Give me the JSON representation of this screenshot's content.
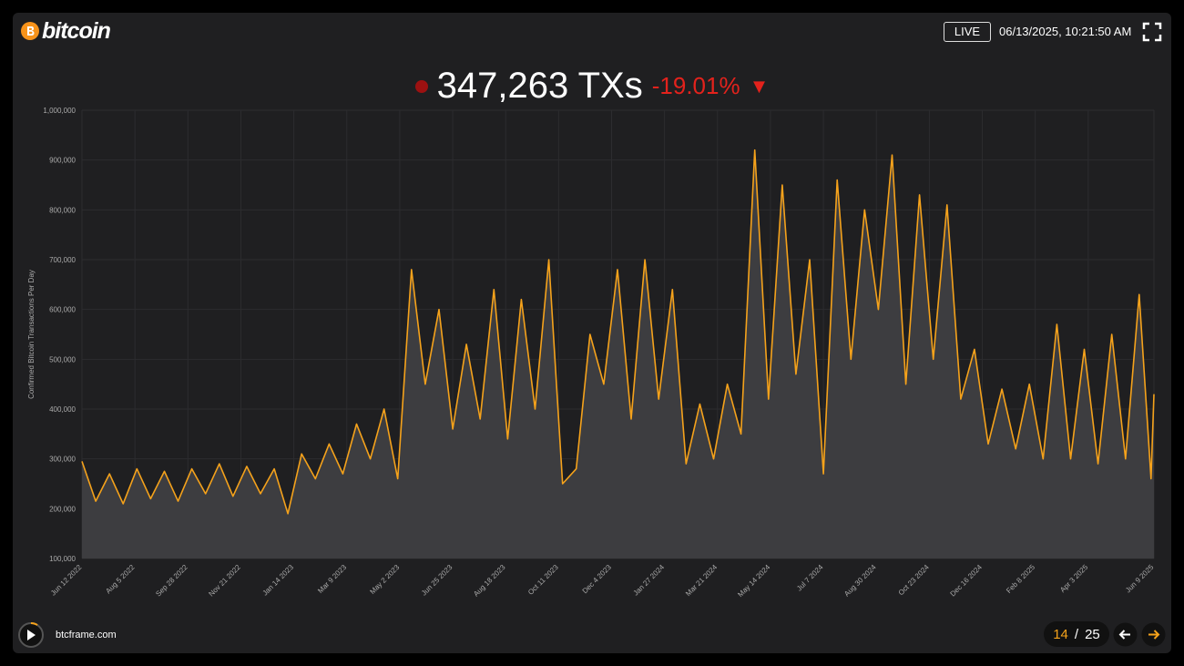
{
  "header": {
    "logo_text": "bitcoin",
    "live": "LIVE",
    "datetime": "06/13/2025, 10:21:50 AM"
  },
  "headline": {
    "value_text": "347,263 TXs",
    "change": "-19.01%",
    "arrow": "▼"
  },
  "footer": {
    "site": "btcframe.com",
    "page": "14",
    "separator": "/",
    "total": "25"
  },
  "chart_data": {
    "type": "area-line",
    "y_label": "Confirmed Bitcoin Transactions Per Day",
    "color": "#f5a21b",
    "area_color": "#3d3d40",
    "grid": true,
    "x": [
      "2022-06-12",
      "2022-06-26",
      "2022-07-10",
      "2022-07-24",
      "2022-08-07",
      "2022-08-21",
      "2022-09-04",
      "2022-09-18",
      "2022-10-02",
      "2022-10-16",
      "2022-10-30",
      "2022-11-13",
      "2022-11-27",
      "2022-12-11",
      "2022-12-25",
      "2023-01-08",
      "2023-01-22",
      "2023-02-05",
      "2023-02-19",
      "2023-03-05",
      "2023-03-19",
      "2023-04-02",
      "2023-04-16",
      "2023-04-30",
      "2023-05-14",
      "2023-05-28",
      "2023-06-11",
      "2023-06-25",
      "2023-07-09",
      "2023-07-23",
      "2023-08-06",
      "2023-08-20",
      "2023-09-03",
      "2023-09-17",
      "2023-10-01",
      "2023-10-15",
      "2023-10-29",
      "2023-11-12",
      "2023-11-26",
      "2023-12-10",
      "2023-12-24",
      "2024-01-07",
      "2024-01-21",
      "2024-02-04",
      "2024-02-18",
      "2024-03-03",
      "2024-03-17",
      "2024-03-31",
      "2024-04-14",
      "2024-04-28",
      "2024-05-12",
      "2024-05-26",
      "2024-06-09",
      "2024-06-23",
      "2024-07-07",
      "2024-07-21",
      "2024-08-04",
      "2024-08-18",
      "2024-09-01",
      "2024-09-15",
      "2024-09-29",
      "2024-10-13",
      "2024-10-27",
      "2024-11-10",
      "2024-11-24",
      "2024-12-08",
      "2024-12-22",
      "2025-01-05",
      "2025-01-19",
      "2025-02-02",
      "2025-02-16",
      "2025-03-02",
      "2025-03-16",
      "2025-03-30",
      "2025-04-13",
      "2025-04-27",
      "2025-05-11",
      "2025-05-25",
      "2025-06-06",
      "2025-06-09"
    ],
    "values": [
      295000,
      215000,
      270000,
      210000,
      280000,
      220000,
      275000,
      215000,
      280000,
      230000,
      290000,
      225000,
      285000,
      230000,
      280000,
      190000,
      310000,
      260000,
      330000,
      270000,
      370000,
      300000,
      400000,
      260000,
      680000,
      450000,
      600000,
      360000,
      530000,
      380000,
      640000,
      340000,
      620000,
      400000,
      700000,
      250000,
      280000,
      550000,
      450000,
      680000,
      380000,
      700000,
      420000,
      640000,
      290000,
      410000,
      300000,
      450000,
      350000,
      920000,
      420000,
      850000,
      470000,
      700000,
      270000,
      860000,
      500000,
      800000,
      600000,
      910000,
      450000,
      830000,
      500000,
      810000,
      420000,
      520000,
      330000,
      440000,
      320000,
      450000,
      300000,
      570000,
      300000,
      520000,
      290000,
      550000,
      300000,
      630000,
      260000,
      430000
    ],
    "xlim": [
      "2022-06-12",
      "2025-06-09"
    ],
    "xticks": [
      {
        "value": "2022-06-12",
        "label": "Jun 12 2022"
      },
      {
        "value": "2022-08-05",
        "label": "Aug 5 2022"
      },
      {
        "value": "2022-09-28",
        "label": "Sep 28 2022"
      },
      {
        "value": "2022-11-21",
        "label": "Nov 21 2022"
      },
      {
        "value": "2023-01-14",
        "label": "Jan 14 2023"
      },
      {
        "value": "2023-03-09",
        "label": "Mar 9 2023"
      },
      {
        "value": "2023-05-02",
        "label": "May 2 2023"
      },
      {
        "value": "2023-06-25",
        "label": "Jun 25 2023"
      },
      {
        "value": "2023-08-18",
        "label": "Aug 18 2023"
      },
      {
        "value": "2023-10-11",
        "label": "Oct 11 2023"
      },
      {
        "value": "2023-12-04",
        "label": "Dec 4 2023"
      },
      {
        "value": "2024-01-27",
        "label": "Jan 27 2024"
      },
      {
        "value": "2024-03-21",
        "label": "Mar 21 2024"
      },
      {
        "value": "2024-05-14",
        "label": "May 14 2024"
      },
      {
        "value": "2024-07-07",
        "label": "Jul 7 2024"
      },
      {
        "value": "2024-08-30",
        "label": "Aug 30 2024"
      },
      {
        "value": "2024-10-23",
        "label": "Oct 23 2024"
      },
      {
        "value": "2024-12-16",
        "label": "Dec 16 2024"
      },
      {
        "value": "2025-02-08",
        "label": "Feb 8 2025"
      },
      {
        "value": "2025-04-03",
        "label": "Apr 3 2025"
      },
      {
        "value": "2025-06-09",
        "label": "Jun 9 2025"
      }
    ],
    "ylim": [
      100000,
      1000000
    ],
    "yticks": [
      {
        "value": 100000,
        "label": "100,000"
      },
      {
        "value": 200000,
        "label": "200,000"
      },
      {
        "value": 300000,
        "label": "300,000"
      },
      {
        "value": 400000,
        "label": "400,000"
      },
      {
        "value": 500000,
        "label": "500,000"
      },
      {
        "value": 600000,
        "label": "600,000"
      },
      {
        "value": 700000,
        "label": "700,000"
      },
      {
        "value": 800000,
        "label": "800,000"
      },
      {
        "value": 900000,
        "label": "900,000"
      },
      {
        "value": 1000000,
        "label": "1,000,000"
      }
    ]
  }
}
